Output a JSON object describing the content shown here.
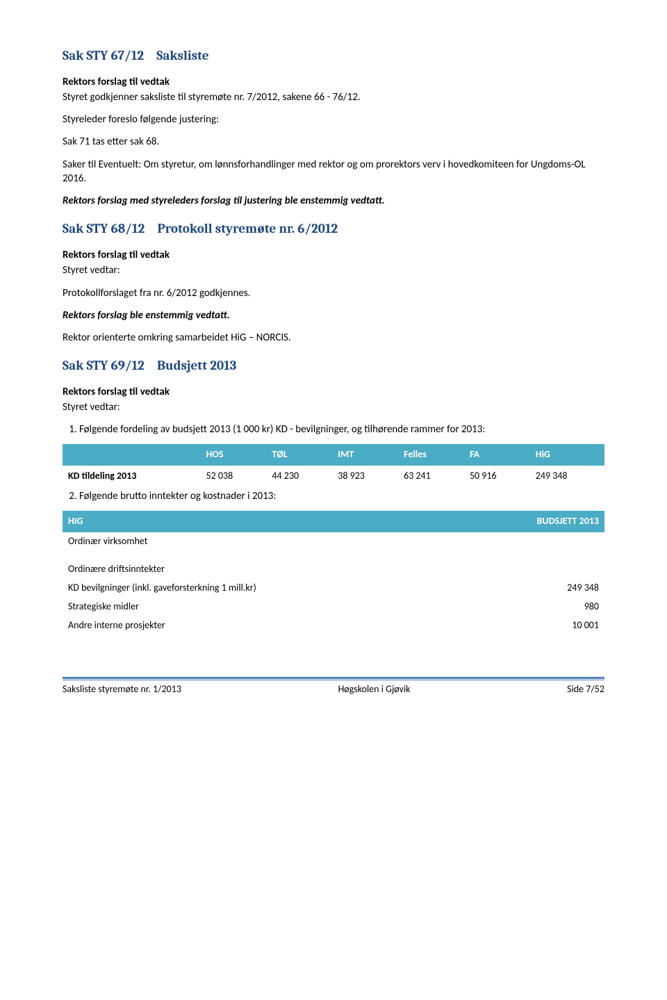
{
  "colors": {
    "heading": "#1f497d",
    "table_header_bg": "#4bacc6",
    "table_header_fg": "#ffffff",
    "footer_rule": "#4f81bd",
    "body_text": "#000000",
    "page_bg": "#ffffff"
  },
  "typography": {
    "body_family": "Calibri",
    "heading_family": "Cambria",
    "body_size_pt": 11,
    "heading_size_pt": 14
  },
  "sections": {
    "s67": {
      "num": "Sak STY 67/12",
      "title": "Saksliste",
      "p1": "Rektors forslag til vedtak",
      "p2": "Styret godkjenner saksliste til styremøte nr. 7/2012, sakene 66 - 76/12.",
      "p3": "Styreleder foreslo følgende justering:",
      "p4": "Sak 71 tas etter sak 68.",
      "p5": "Saker til Eventuelt: Om styretur, om lønnsforhandlinger med rektor og om prorektors verv i hovedkomiteen for Ungdoms-OL 2016.",
      "p6": "Rektors forslag med styreleders forslag til justering ble enstemmig vedtatt."
    },
    "s68": {
      "num": "Sak STY 68/12",
      "title": "Protokoll styremøte nr. 6/2012",
      "p1": "Rektors forslag til vedtak",
      "p2": "Styret vedtar:",
      "p3": "Protokollforslaget fra nr. 6/2012 godkjennes.",
      "p4": "Rektors forslag ble enstemmig vedtatt.",
      "p5": "Rektor orienterte omkring samarbeidet HiG – NORCIS."
    },
    "s69": {
      "num": "Sak STY 69/12",
      "title": "Budsjett 2013",
      "p1": "Rektors forslag til vedtak",
      "p2": "Styret vedtar:",
      "li1": "Følgende fordeling av budsjett 2013 (1 000 kr) KD - bevilgninger, og tilhørende rammer for 2013:",
      "li2": "Følgende brutto inntekter og kostnader i 2013:"
    }
  },
  "budget_table": {
    "type": "table",
    "columns": [
      "",
      "HOS",
      "TØL",
      "IMT",
      "Felles",
      "FA",
      "HiG"
    ],
    "row_label": "KD tildeling 2013",
    "row_values": [
      "52 038",
      "44 230",
      "38 923",
      "63 241",
      "50 916",
      "249 348"
    ],
    "header_bg": "#4bacc6",
    "header_fg": "#ffffff",
    "font_size_pt": 10
  },
  "hig_table": {
    "type": "table",
    "header_left": "HIG",
    "header_right": "BUDSJETT 2013",
    "rows": [
      {
        "label": "Ordinær virksomhet",
        "value": ""
      },
      {
        "label": "",
        "value": "",
        "blank": true
      },
      {
        "label": "Ordinære driftsinntekter",
        "value": ""
      },
      {
        "label": "KD bevilgninger (inkl. gaveforsterkning 1 mill.kr)",
        "value": "249 348"
      },
      {
        "label": "Strategiske midler",
        "value": "980"
      },
      {
        "label": "Andre interne prosjekter",
        "value": "10 001"
      }
    ],
    "header_bg": "#4bacc6",
    "header_fg": "#ffffff"
  },
  "footer": {
    "left": "Saksliste styremøte nr. 1/2013",
    "center": "Høgskolen i Gjøvik",
    "right": "Side 7/52"
  }
}
